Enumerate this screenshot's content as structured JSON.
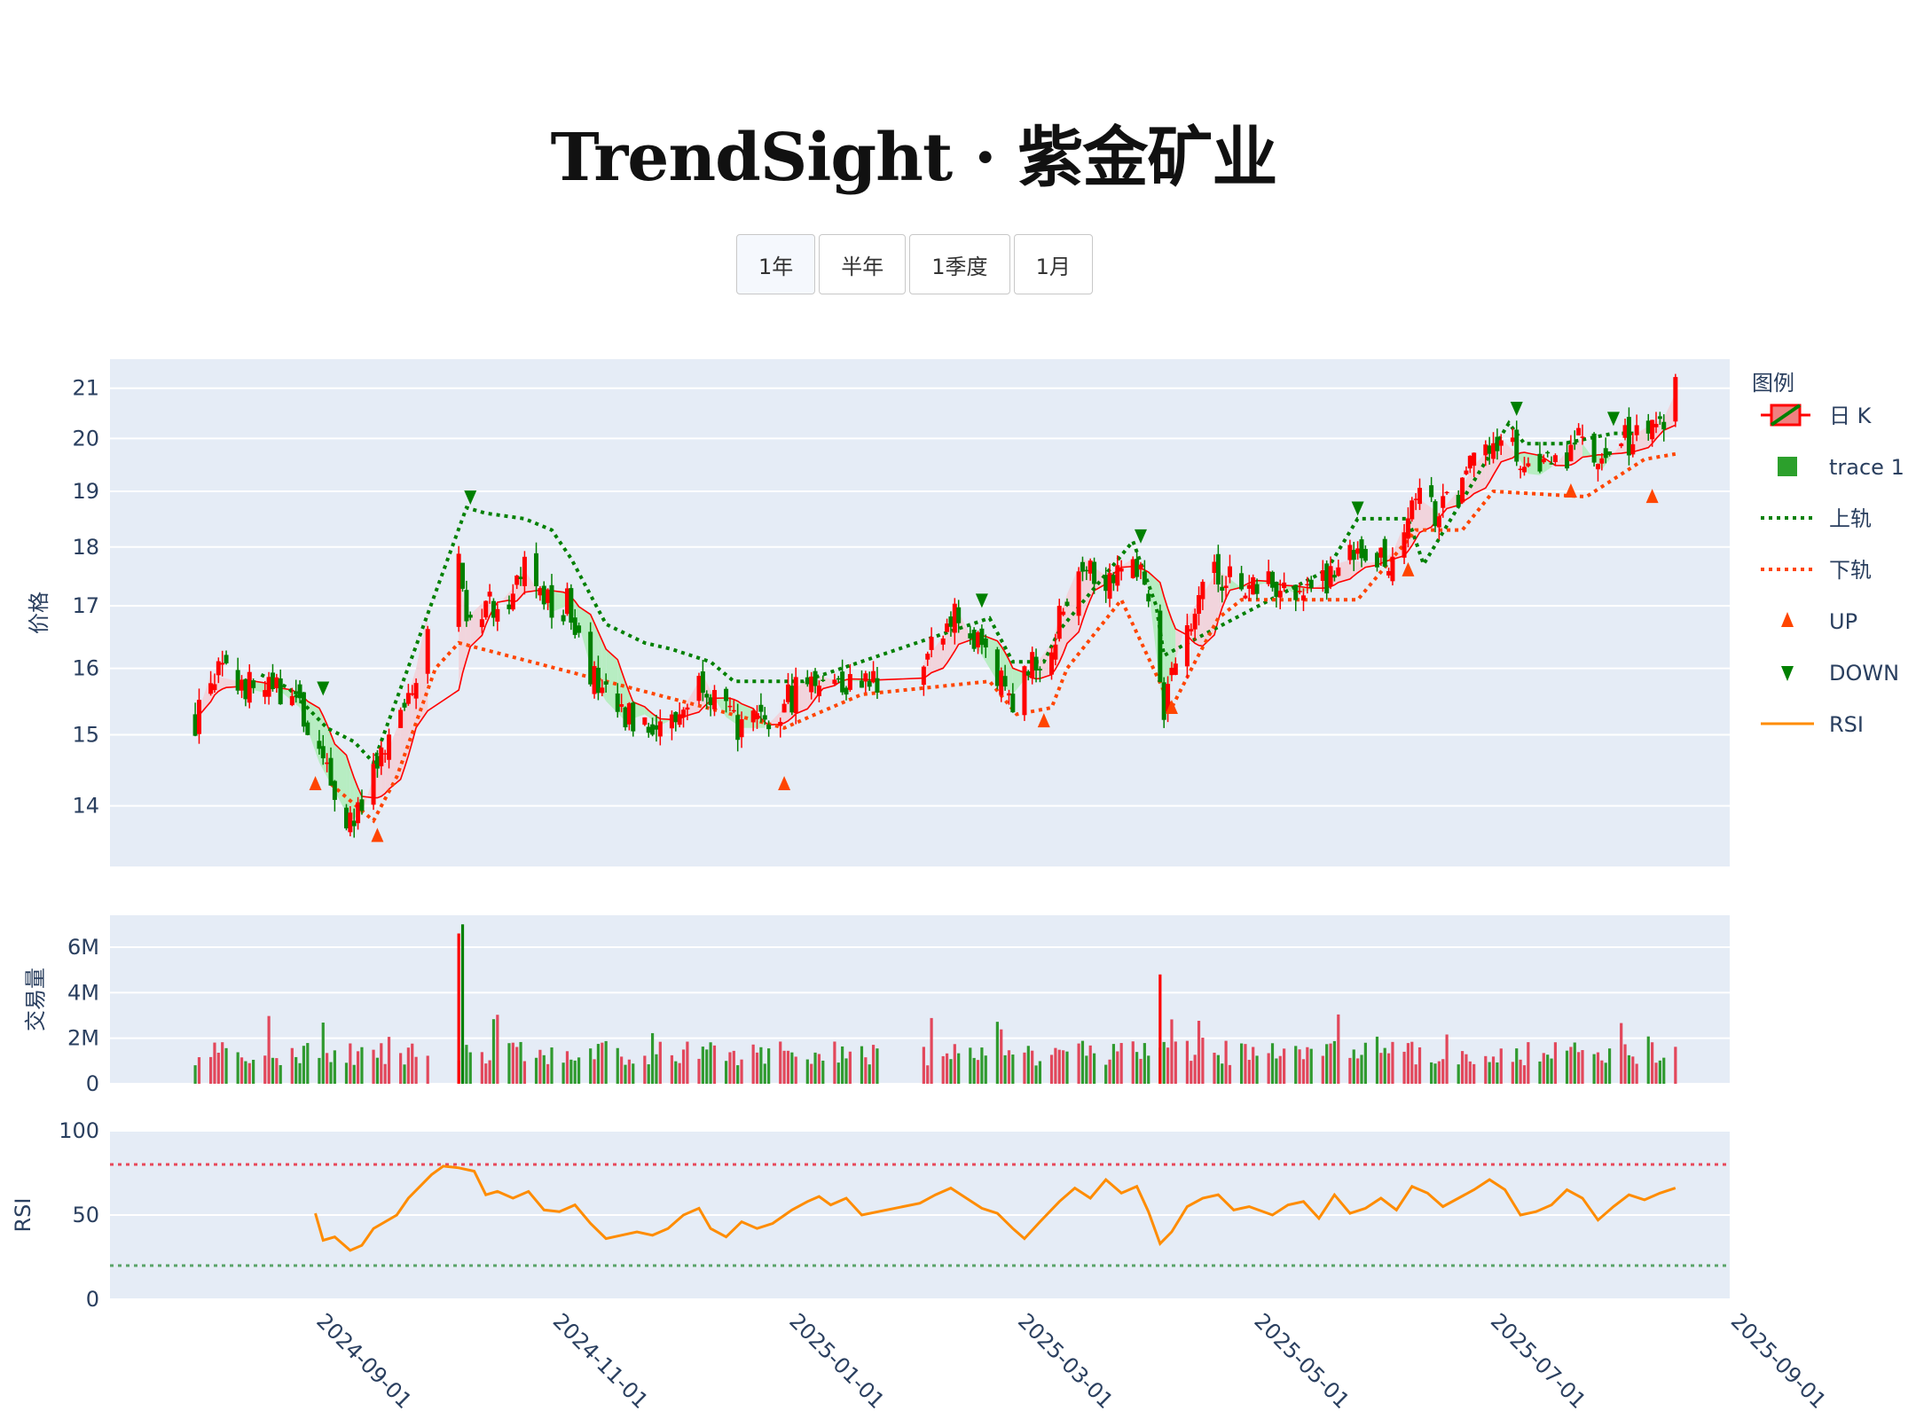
{
  "title": "TrendSight · 紫金矿业",
  "range_buttons": [
    {
      "label": "1年",
      "active": true
    },
    {
      "label": "半年",
      "active": false
    },
    {
      "label": "1季度",
      "active": false
    },
    {
      "label": "1月",
      "active": false
    }
  ],
  "legend": {
    "title": "图例",
    "items": [
      {
        "name": "日 K",
        "kind": "candle"
      },
      {
        "name": "trace 1",
        "kind": "square",
        "color": "#2ca02c"
      },
      {
        "name": "上轨",
        "kind": "dotted",
        "color": "#008000"
      },
      {
        "name": "下轨",
        "kind": "dotted",
        "color": "#ff4500"
      },
      {
        "name": "UP",
        "kind": "tri-up",
        "color": "#ff4500"
      },
      {
        "name": "DOWN",
        "kind": "tri-down",
        "color": "#008000"
      },
      {
        "name": "RSI",
        "kind": "line",
        "color": "#ff8c00"
      }
    ]
  },
  "colors": {
    "increasing": "#ff0000",
    "decreasing": "#008000",
    "upper_band": "#008000",
    "lower_band": "#ff4500",
    "rsi": "#ff8c00",
    "rsi_high": "#e8495b",
    "rsi_low": "#5aa469",
    "fill_up": "#b7edc2",
    "fill_down": "#f1d4dc",
    "plot_bg": "#e5ecf6"
  },
  "chart_data": {
    "type": "candlestick",
    "x_ticks": [
      "2024-09-01",
      "2024-11-01",
      "2025-01-01",
      "2025-03-01",
      "2025-05-01",
      "2025-07-01",
      "2025-09-01"
    ],
    "x_range": [
      "2024-07-10",
      "2025-09-01"
    ],
    "price": {
      "ylabel": "价格",
      "scale": "log",
      "ylim": [
        13.2,
        21.6
      ],
      "y_ticks": [
        14,
        15,
        16,
        17,
        18,
        19,
        20,
        21
      ],
      "close_path": [
        [
          "2024-08-01",
          15.2
        ],
        [
          "2024-08-05",
          15.9
        ],
        [
          "2024-08-12",
          15.8
        ],
        [
          "2024-08-18",
          15.6
        ],
        [
          "2024-08-22",
          15.7
        ],
        [
          "2024-08-28",
          15.4
        ],
        [
          "2024-09-02",
          14.6
        ],
        [
          "2024-09-06",
          14.2
        ],
        [
          "2024-09-10",
          13.8
        ],
        [
          "2024-09-13",
          13.9
        ],
        [
          "2024-09-16",
          14.4
        ],
        [
          "2024-09-20",
          14.8
        ],
        [
          "2024-09-24",
          15.4
        ],
        [
          "2024-09-27",
          16.0
        ],
        [
          "2024-09-30",
          16.9
        ],
        [
          "2024-10-08",
          17.6
        ],
        [
          "2024-10-10",
          16.8
        ],
        [
          "2024-10-15",
          17.1
        ],
        [
          "2024-10-18",
          17.0
        ],
        [
          "2024-10-22",
          17.3
        ],
        [
          "2024-10-25",
          17.6
        ],
        [
          "2024-10-29",
          17.2
        ],
        [
          "2024-11-01",
          16.9
        ],
        [
          "2024-11-05",
          17.0
        ],
        [
          "2024-11-08",
          16.7
        ],
        [
          "2024-11-12",
          15.8
        ],
        [
          "2024-11-15",
          15.5
        ],
        [
          "2024-11-20",
          15.2
        ],
        [
          "2024-11-25",
          15.3
        ],
        [
          "2024-11-30",
          15.1
        ],
        [
          "2024-12-05",
          15.4
        ],
        [
          "2024-12-10",
          15.9
        ],
        [
          "2024-12-15",
          15.3
        ],
        [
          "2024-12-20",
          15.1
        ],
        [
          "2024-12-26",
          15.1
        ],
        [
          "2024-12-31",
          15.4
        ],
        [
          "2025-01-03",
          15.7
        ],
        [
          "2025-01-08",
          15.9
        ],
        [
          "2025-01-14",
          15.8
        ],
        [
          "2025-01-20",
          15.8
        ],
        [
          "2025-02-05",
          16.1
        ],
        [
          "2025-02-10",
          16.5
        ],
        [
          "2025-02-14",
          16.9
        ],
        [
          "2025-02-18",
          16.4
        ],
        [
          "2025-02-24",
          15.8
        ],
        [
          "2025-02-28",
          15.6
        ],
        [
          "2025-03-04",
          15.9
        ],
        [
          "2025-03-10",
          16.4
        ],
        [
          "2025-03-14",
          17.2
        ],
        [
          "2025-03-18",
          17.8
        ],
        [
          "2025-03-24",
          17.5
        ],
        [
          "2025-03-31",
          17.8
        ],
        [
          "2025-04-04",
          17.3
        ],
        [
          "2025-04-08",
          15.2
        ],
        [
          "2025-04-10",
          15.9
        ],
        [
          "2025-04-14",
          16.8
        ],
        [
          "2025-04-18",
          17.2
        ],
        [
          "2025-04-22",
          17.6
        ],
        [
          "2025-04-28",
          17.3
        ],
        [
          "2025-05-06",
          17.4
        ],
        [
          "2025-05-12",
          17.2
        ],
        [
          "2025-05-18",
          17.3
        ],
        [
          "2025-05-24",
          17.8
        ],
        [
          "2025-06-01",
          17.7
        ],
        [
          "2025-06-06",
          17.9
        ],
        [
          "2025-06-12",
          18.9
        ],
        [
          "2025-06-18",
          18.6
        ],
        [
          "2025-06-24",
          19.1
        ],
        [
          "2025-06-28",
          19.6
        ],
        [
          "2025-07-04",
          20.0
        ],
        [
          "2025-07-08",
          19.7
        ],
        [
          "2025-07-12",
          19.2
        ],
        [
          "2025-07-18",
          19.5
        ],
        [
          "2025-07-24",
          20.0
        ],
        [
          "2025-07-30",
          19.4
        ],
        [
          "2025-08-04",
          19.9
        ],
        [
          "2025-08-10",
          20.2
        ],
        [
          "2025-08-15",
          20.4
        ],
        [
          "2025-08-18",
          20.9
        ]
      ],
      "upper_band": [
        [
          "2024-08-18",
          15.9
        ],
        [
          "2024-08-25",
          15.7
        ],
        [
          "2024-09-04",
          15.1
        ],
        [
          "2024-09-11",
          14.9
        ],
        [
          "2024-09-16",
          14.6
        ],
        [
          "2024-10-10",
          18.7
        ],
        [
          "2024-10-15",
          18.6
        ],
        [
          "2024-10-25",
          18.5
        ],
        [
          "2024-11-01",
          18.3
        ],
        [
          "2024-11-06",
          17.8
        ],
        [
          "2024-11-15",
          16.7
        ],
        [
          "2024-11-25",
          16.4
        ],
        [
          "2024-12-02",
          16.3
        ],
        [
          "2024-12-12",
          16.1
        ],
        [
          "2024-12-18",
          15.8
        ],
        [
          "2025-01-03",
          15.8
        ],
        [
          "2025-01-05",
          15.8
        ],
        [
          "2025-02-22",
          16.8
        ],
        [
          "2025-02-28",
          16.1
        ],
        [
          "2025-03-08",
          16.1
        ],
        [
          "2025-03-12",
          16.6
        ],
        [
          "2025-03-31",
          18.1
        ],
        [
          "2025-04-06",
          17.0
        ],
        [
          "2025-04-08",
          16.2
        ],
        [
          "2025-05-20",
          17.6
        ],
        [
          "2025-05-28",
          18.5
        ],
        [
          "2025-06-10",
          18.5
        ],
        [
          "2025-06-14",
          17.7
        ],
        [
          "2025-07-06",
          20.3
        ],
        [
          "2025-07-10",
          19.9
        ],
        [
          "2025-07-20",
          19.9
        ],
        [
          "2025-08-02",
          20.1
        ],
        [
          "2025-08-08",
          20.1
        ]
      ],
      "lower_band": [
        [
          "2024-09-05",
          14.3
        ],
        [
          "2024-09-16",
          13.8
        ],
        [
          "2024-09-22",
          14.4
        ],
        [
          "2024-10-02",
          16.0
        ],
        [
          "2024-10-08",
          16.4
        ],
        [
          "2024-12-31",
          15.1
        ],
        [
          "2025-01-08",
          15.3
        ],
        [
          "2025-01-20",
          15.6
        ],
        [
          "2025-02-22",
          15.8
        ],
        [
          "2025-03-01",
          15.3
        ],
        [
          "2025-03-10",
          15.4
        ],
        [
          "2025-03-14",
          16.0
        ],
        [
          "2025-03-28",
          17.1
        ],
        [
          "2025-04-10",
          15.4
        ],
        [
          "2025-04-16",
          16.1
        ],
        [
          "2025-04-22",
          16.8
        ],
        [
          "2025-04-28",
          17.1
        ],
        [
          "2025-05-28",
          17.1
        ],
        [
          "2025-06-12",
          18.3
        ],
        [
          "2025-06-24",
          18.3
        ],
        [
          "2025-07-02",
          19.0
        ],
        [
          "2025-07-26",
          18.9
        ],
        [
          "2025-08-10",
          19.6
        ],
        [
          "2025-08-18",
          19.7
        ]
      ],
      "up_signals": [
        [
          "2024-09-01",
          14.3
        ],
        [
          "2024-09-17",
          13.6
        ],
        [
          "2024-12-31",
          14.3
        ],
        [
          "2025-03-08",
          15.2
        ],
        [
          "2025-04-10",
          15.4
        ],
        [
          "2025-06-10",
          17.6
        ],
        [
          "2025-07-22",
          19.0
        ],
        [
          "2025-08-12",
          18.9
        ]
      ],
      "down_signals": [
        [
          "2024-09-03",
          15.7
        ],
        [
          "2024-10-11",
          18.9
        ],
        [
          "2025-02-20",
          17.1
        ],
        [
          "2025-04-02",
          18.2
        ],
        [
          "2025-05-28",
          18.7
        ],
        [
          "2025-07-08",
          20.6
        ],
        [
          "2025-08-02",
          20.4
        ]
      ]
    },
    "volume": {
      "ylabel": "交易量",
      "ylim": [
        0,
        7.4
      ],
      "y_ticks": [
        "0",
        "2M",
        "4M",
        "6M"
      ],
      "y_tick_values": [
        0,
        2,
        4,
        6
      ],
      "unit": "M"
    },
    "rsi": {
      "ylabel": "RSI",
      "ylim": [
        0,
        100
      ],
      "y_ticks": [
        0,
        50,
        100
      ],
      "overbought": 80,
      "oversold": 20,
      "values": [
        [
          "2024-09-01",
          51
        ],
        [
          "2024-09-03",
          35
        ],
        [
          "2024-09-06",
          37
        ],
        [
          "2024-09-10",
          29
        ],
        [
          "2024-09-13",
          32
        ],
        [
          "2024-09-16",
          42
        ],
        [
          "2024-09-22",
          50
        ],
        [
          "2024-09-25",
          60
        ],
        [
          "2024-09-28",
          67
        ],
        [
          "2024-10-01",
          74
        ],
        [
          "2024-10-04",
          79
        ],
        [
          "2024-10-08",
          78
        ],
        [
          "2024-10-12",
          76
        ],
        [
          "2024-10-15",
          62
        ],
        [
          "2024-10-18",
          64
        ],
        [
          "2024-10-22",
          60
        ],
        [
          "2024-10-26",
          64
        ],
        [
          "2024-10-30",
          53
        ],
        [
          "2024-11-03",
          52
        ],
        [
          "2024-11-07",
          56
        ],
        [
          "2024-11-11",
          45
        ],
        [
          "2024-11-15",
          36
        ],
        [
          "2024-11-19",
          38
        ],
        [
          "2024-11-23",
          40
        ],
        [
          "2024-11-27",
          38
        ],
        [
          "2024-12-01",
          42
        ],
        [
          "2024-12-05",
          50
        ],
        [
          "2024-12-09",
          54
        ],
        [
          "2024-12-12",
          42
        ],
        [
          "2024-12-16",
          37
        ],
        [
          "2024-12-20",
          46
        ],
        [
          "2024-12-24",
          42
        ],
        [
          "2024-12-28",
          45
        ],
        [
          "2025-01-02",
          53
        ],
        [
          "2025-01-06",
          58
        ],
        [
          "2025-01-09",
          61
        ],
        [
          "2025-01-12",
          56
        ],
        [
          "2025-01-16",
          60
        ],
        [
          "2025-01-20",
          50
        ],
        [
          "2025-02-04",
          57
        ],
        [
          "2025-02-08",
          62
        ],
        [
          "2025-02-12",
          66
        ],
        [
          "2025-02-16",
          60
        ],
        [
          "2025-02-20",
          54
        ],
        [
          "2025-02-24",
          51
        ],
        [
          "2025-02-28",
          42
        ],
        [
          "2025-03-03",
          36
        ],
        [
          "2025-03-07",
          46
        ],
        [
          "2025-03-12",
          58
        ],
        [
          "2025-03-16",
          66
        ],
        [
          "2025-03-20",
          60
        ],
        [
          "2025-03-24",
          71
        ],
        [
          "2025-03-28",
          63
        ],
        [
          "2025-04-01",
          67
        ],
        [
          "2025-04-04",
          52
        ],
        [
          "2025-04-07",
          33
        ],
        [
          "2025-04-10",
          40
        ],
        [
          "2025-04-14",
          55
        ],
        [
          "2025-04-18",
          60
        ],
        [
          "2025-04-22",
          62
        ],
        [
          "2025-04-26",
          53
        ],
        [
          "2025-04-30",
          55
        ],
        [
          "2025-05-06",
          50
        ],
        [
          "2025-05-10",
          56
        ],
        [
          "2025-05-14",
          58
        ],
        [
          "2025-05-18",
          48
        ],
        [
          "2025-05-22",
          62
        ],
        [
          "2025-05-26",
          51
        ],
        [
          "2025-05-30",
          54
        ],
        [
          "2025-06-03",
          60
        ],
        [
          "2025-06-07",
          53
        ],
        [
          "2025-06-11",
          67
        ],
        [
          "2025-06-15",
          63
        ],
        [
          "2025-06-19",
          55
        ],
        [
          "2025-06-23",
          60
        ],
        [
          "2025-06-27",
          65
        ],
        [
          "2025-07-01",
          71
        ],
        [
          "2025-07-05",
          65
        ],
        [
          "2025-07-09",
          50
        ],
        [
          "2025-07-13",
          52
        ],
        [
          "2025-07-17",
          56
        ],
        [
          "2025-07-21",
          65
        ],
        [
          "2025-07-25",
          60
        ],
        [
          "2025-07-29",
          47
        ],
        [
          "2025-08-02",
          55
        ],
        [
          "2025-08-06",
          62
        ],
        [
          "2025-08-10",
          59
        ],
        [
          "2025-08-14",
          63
        ],
        [
          "2025-08-18",
          66
        ]
      ]
    }
  }
}
